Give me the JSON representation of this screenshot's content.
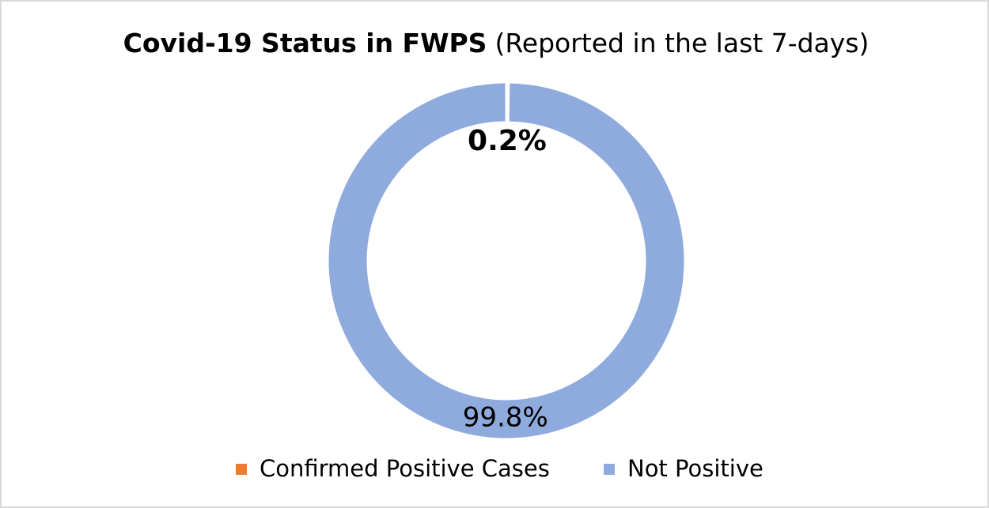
{
  "chart_data": {
    "type": "donut",
    "title": "Covid-19 Status in FWPS",
    "subtitle": "(Reported in the last 7-days)",
    "categories": [
      "Confirmed Positive Cases",
      "Not Positive"
    ],
    "values": [
      0.2,
      99.8
    ],
    "value_labels": [
      "0.2%",
      "99.8%"
    ],
    "colors": [
      "#ed7d31",
      "#8faadc"
    ],
    "legend": "bottom"
  }
}
